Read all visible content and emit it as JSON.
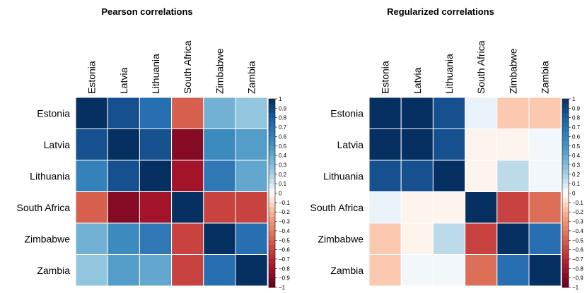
{
  "chart_data": [
    {
      "type": "heatmap",
      "title": "Pearson correlations",
      "rows": [
        "Estonia",
        "Latvia",
        "Lithuania",
        "South Africa",
        "Zimbabwe",
        "Zambia"
      ],
      "cols": [
        "Estonia",
        "Latvia",
        "Lithuania",
        "South Africa",
        "Zimbabwe",
        "Zambia"
      ],
      "values": [
        [
          1.0,
          0.85,
          0.7,
          -0.5,
          0.35,
          0.25
        ],
        [
          0.85,
          1.0,
          0.85,
          -0.9,
          0.55,
          0.45
        ],
        [
          0.6,
          0.85,
          1.0,
          -0.8,
          0.65,
          0.4
        ],
        [
          -0.5,
          -0.9,
          -0.8,
          1.0,
          -0.6,
          -0.6
        ],
        [
          0.35,
          0.55,
          0.65,
          -0.6,
          1.0,
          0.7
        ],
        [
          0.25,
          0.45,
          0.4,
          -0.6,
          0.7,
          1.0
        ]
      ],
      "zlim": [
        -1,
        1
      ],
      "colorbar_ticks": [
        "1",
        "0.9",
        "0.8",
        "0.7",
        "0.6",
        "0.5",
        "0.4",
        "0.3",
        "0.2",
        "0.1",
        "0",
        "−0.1",
        "−0.2",
        "−0.3",
        "−0.4",
        "−0.5",
        "−0.6",
        "−0.7",
        "−0.8",
        "−0.9",
        "−1"
      ]
    },
    {
      "type": "heatmap",
      "title": "Regularized correlations",
      "rows": [
        "Estonia",
        "Latvia",
        "Lithuania",
        "South Africa",
        "Zimbabwe",
        "Zambia"
      ],
      "cols": [
        "Estonia",
        "Latvia",
        "Lithuania",
        "South Africa",
        "Zimbabwe",
        "Zambia"
      ],
      "values": [
        [
          1.0,
          1.0,
          0.85,
          0.05,
          -0.15,
          -0.15
        ],
        [
          1.0,
          1.0,
          0.85,
          -0.03,
          -0.03,
          0.03
        ],
        [
          0.85,
          0.85,
          1.0,
          -0.03,
          0.15,
          0.03
        ],
        [
          0.05,
          -0.03,
          -0.03,
          1.0,
          -0.6,
          -0.45
        ],
        [
          -0.15,
          -0.03,
          0.15,
          -0.6,
          1.0,
          0.7
        ],
        [
          -0.15,
          0.03,
          0.03,
          -0.45,
          0.7,
          1.0
        ]
      ],
      "zlim": [
        -1,
        1
      ],
      "colorbar_ticks": [
        "1",
        "0.9",
        "0.8",
        "0.7",
        "0.6",
        "0.5",
        "0.4",
        "0.3",
        "0.2",
        "0.1",
        "0",
        "−0.1",
        "−0.2",
        "−0.3",
        "−0.4",
        "−0.5",
        "−0.6",
        "−0.7",
        "−0.8",
        "−0.9",
        "−1"
      ]
    }
  ]
}
